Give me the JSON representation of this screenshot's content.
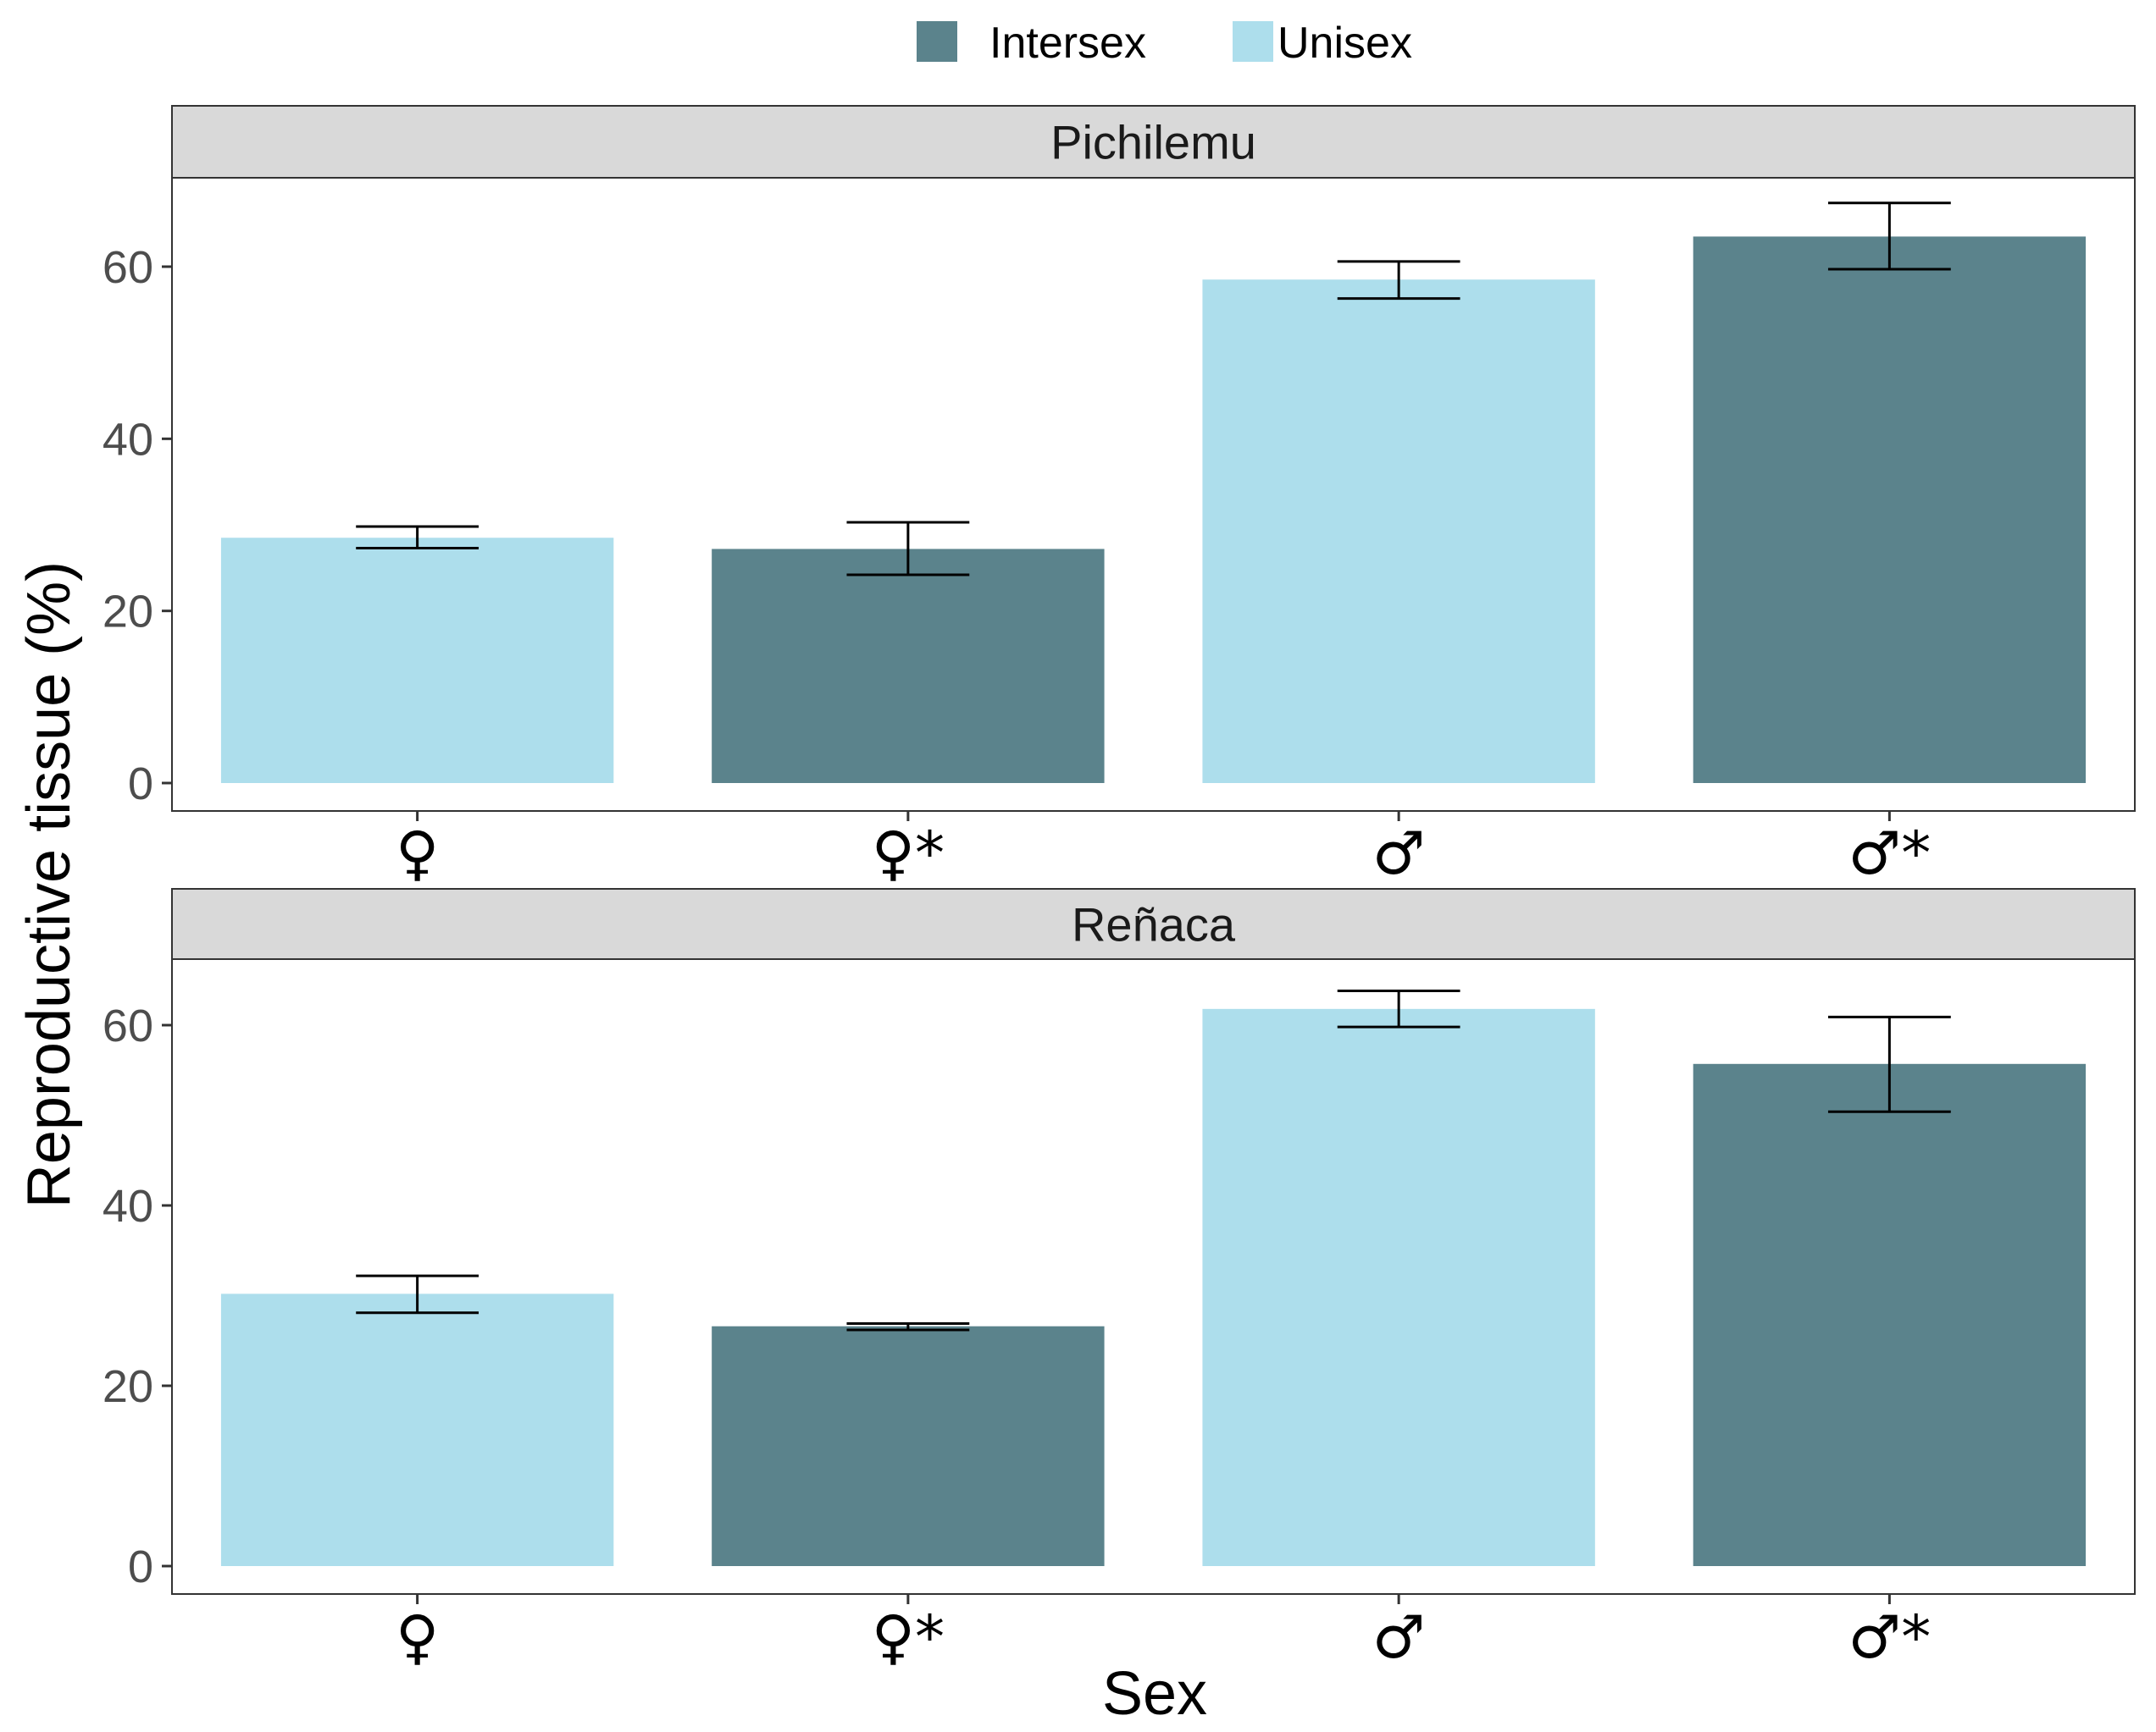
{
  "chart_data": {
    "type": "bar",
    "xlabel": "Sex",
    "ylabel": "Reproductive tissue (%)",
    "categories": [
      "♀",
      "♀*",
      "♂",
      "♂*"
    ],
    "yticks": [
      0,
      20,
      40,
      60
    ],
    "ylim": [
      0,
      70
    ],
    "grid": false,
    "legend_position": "top",
    "legend": [
      {
        "name": "Intersex",
        "color": "#5b838c"
      },
      {
        "name": "Unisex",
        "color": "#addeec"
      }
    ],
    "category_group": [
      "Unisex",
      "Intersex",
      "Unisex",
      "Intersex"
    ],
    "panels": [
      {
        "title": "Pichilemu",
        "values": [
          28.5,
          27.2,
          58.5,
          63.5
        ],
        "error_low": [
          27.3,
          24.2,
          56.3,
          59.7
        ],
        "error_high": [
          29.8,
          30.3,
          60.6,
          67.4
        ]
      },
      {
        "title": "Reñaca",
        "values": [
          30.2,
          26.6,
          61.8,
          55.7
        ],
        "error_low": [
          28.1,
          26.2,
          59.8,
          50.4
        ],
        "error_high": [
          32.2,
          26.9,
          63.8,
          60.9
        ]
      }
    ]
  }
}
